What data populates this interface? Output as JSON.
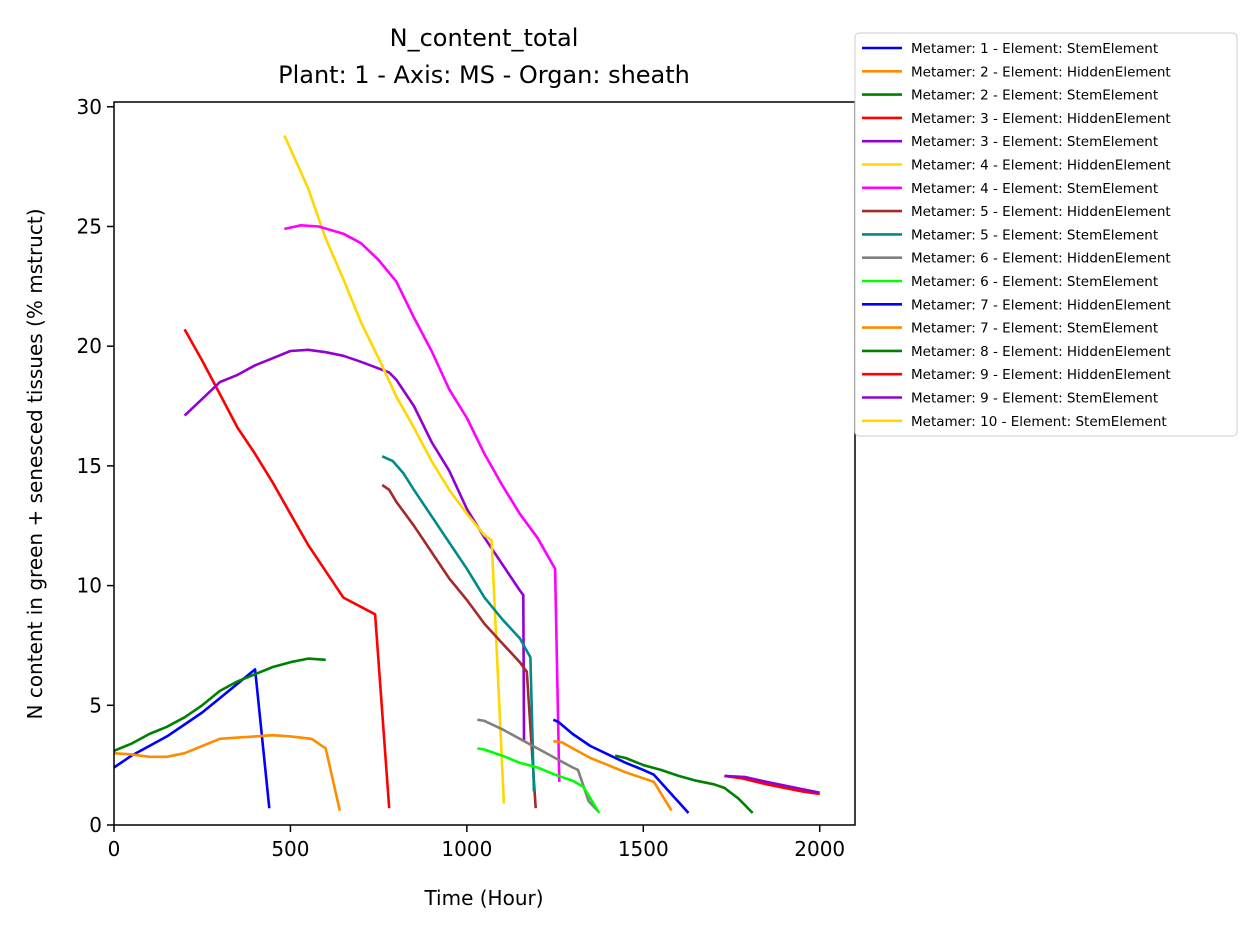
{
  "chart_data": {
    "type": "line",
    "title": "N_content_total",
    "subtitle": "Plant: 1 - Axis: MS - Organ: sheath",
    "xlabel": "Time (Hour)",
    "ylabel": "N content in green + senesced tissues (% mstruct)",
    "xlim": [
      0,
      2100
    ],
    "ylim": [
      0,
      30.2
    ],
    "xticks": [
      0,
      500,
      1000,
      1500,
      2000
    ],
    "yticks": [
      0,
      5,
      10,
      15,
      20,
      25,
      30
    ],
    "grid": false,
    "legend_position": "outside-top-right",
    "series": [
      {
        "name": "Metamer: 1 - Element: StemElement",
        "color": "#0000ff",
        "points": [
          [
            0,
            2.4
          ],
          [
            50,
            2.9
          ],
          [
            100,
            3.3
          ],
          [
            150,
            3.7
          ],
          [
            200,
            4.2
          ],
          [
            250,
            4.7
          ],
          [
            300,
            5.3
          ],
          [
            350,
            5.9
          ],
          [
            400,
            6.5
          ],
          [
            440,
            0.7
          ]
        ]
      },
      {
        "name": "Metamer: 2 - Element: HiddenElement",
        "color": "#ff8c00",
        "points": [
          [
            0,
            3.0
          ],
          [
            50,
            2.95
          ],
          [
            100,
            2.85
          ],
          [
            150,
            2.85
          ],
          [
            200,
            3.0
          ],
          [
            250,
            3.3
          ],
          [
            300,
            3.6
          ],
          [
            350,
            3.65
          ],
          [
            400,
            3.7
          ],
          [
            450,
            3.75
          ],
          [
            500,
            3.7
          ],
          [
            560,
            3.6
          ],
          [
            600,
            3.2
          ],
          [
            640,
            0.6
          ]
        ]
      },
      {
        "name": "Metamer: 2 - Element: StemElement",
        "color": "#008000",
        "points": [
          [
            0,
            3.1
          ],
          [
            50,
            3.4
          ],
          [
            100,
            3.8
          ],
          [
            150,
            4.1
          ],
          [
            200,
            4.5
          ],
          [
            250,
            5.0
          ],
          [
            300,
            5.6
          ],
          [
            350,
            6.0
          ],
          [
            400,
            6.3
          ],
          [
            450,
            6.6
          ],
          [
            500,
            6.8
          ],
          [
            550,
            6.95
          ],
          [
            600,
            6.9
          ]
        ]
      },
      {
        "name": "Metamer: 3 - Element: HiddenElement",
        "color": "#ff0000",
        "points": [
          [
            200,
            20.7
          ],
          [
            250,
            19.4
          ],
          [
            300,
            18.0
          ],
          [
            350,
            16.6
          ],
          [
            400,
            15.5
          ],
          [
            450,
            14.3
          ],
          [
            500,
            13.0
          ],
          [
            550,
            11.7
          ],
          [
            600,
            10.6
          ],
          [
            650,
            9.5
          ],
          [
            740,
            8.8
          ],
          [
            780,
            0.7
          ]
        ]
      },
      {
        "name": "Metamer: 3 - Element: StemElement",
        "color": "#9400d3",
        "points": [
          [
            200,
            17.1
          ],
          [
            250,
            17.8
          ],
          [
            300,
            18.5
          ],
          [
            350,
            18.8
          ],
          [
            400,
            19.2
          ],
          [
            450,
            19.5
          ],
          [
            500,
            19.8
          ],
          [
            550,
            19.85
          ],
          [
            600,
            19.75
          ],
          [
            650,
            19.6
          ],
          [
            700,
            19.35
          ],
          [
            780,
            18.9
          ],
          [
            800,
            18.6
          ],
          [
            850,
            17.5
          ],
          [
            900,
            16.0
          ],
          [
            950,
            14.8
          ],
          [
            1000,
            13.2
          ],
          [
            1050,
            12.0
          ],
          [
            1100,
            10.9
          ],
          [
            1150,
            9.8
          ],
          [
            1160,
            9.6
          ],
          [
            1162,
            3.5
          ]
        ]
      },
      {
        "name": "Metamer: 4 - Element: HiddenElement",
        "color": "#ffd700",
        "points": [
          [
            483,
            28.8
          ],
          [
            550,
            26.6
          ],
          [
            600,
            24.5
          ],
          [
            650,
            22.8
          ],
          [
            700,
            21.0
          ],
          [
            750,
            19.5
          ],
          [
            800,
            17.9
          ],
          [
            850,
            16.6
          ],
          [
            900,
            15.2
          ],
          [
            950,
            14.0
          ],
          [
            1000,
            13.0
          ],
          [
            1050,
            12.1
          ],
          [
            1070,
            11.9
          ],
          [
            1105,
            0.9
          ]
        ]
      },
      {
        "name": "Metamer: 4 - Element: StemElement",
        "color": "#ff00ff",
        "points": [
          [
            483,
            24.9
          ],
          [
            530,
            25.05
          ],
          [
            580,
            25.0
          ],
          [
            650,
            24.7
          ],
          [
            700,
            24.3
          ],
          [
            750,
            23.6
          ],
          [
            800,
            22.7
          ],
          [
            850,
            21.2
          ],
          [
            900,
            19.8
          ],
          [
            950,
            18.2
          ],
          [
            1000,
            17.0
          ],
          [
            1050,
            15.5
          ],
          [
            1100,
            14.2
          ],
          [
            1150,
            13.0
          ],
          [
            1200,
            12.0
          ],
          [
            1250,
            10.7
          ],
          [
            1262,
            1.8
          ]
        ]
      },
      {
        "name": "Metamer: 5 - Element: HiddenElement",
        "color": "#a52a2a",
        "points": [
          [
            760,
            14.2
          ],
          [
            780,
            14.0
          ],
          [
            800,
            13.5
          ],
          [
            850,
            12.5
          ],
          [
            900,
            11.4
          ],
          [
            950,
            10.3
          ],
          [
            1000,
            9.4
          ],
          [
            1050,
            8.4
          ],
          [
            1100,
            7.6
          ],
          [
            1150,
            6.8
          ],
          [
            1170,
            6.4
          ],
          [
            1195,
            0.7
          ]
        ]
      },
      {
        "name": "Metamer: 5 - Element: StemElement",
        "color": "#008b8b",
        "points": [
          [
            760,
            15.4
          ],
          [
            790,
            15.2
          ],
          [
            820,
            14.7
          ],
          [
            850,
            14.0
          ],
          [
            900,
            12.9
          ],
          [
            950,
            11.8
          ],
          [
            1000,
            10.7
          ],
          [
            1050,
            9.5
          ],
          [
            1100,
            8.6
          ],
          [
            1150,
            7.8
          ],
          [
            1180,
            7.0
          ],
          [
            1190,
            1.4
          ]
        ]
      },
      {
        "name": "Metamer: 6 - Element: HiddenElement",
        "color": "#808080",
        "points": [
          [
            1030,
            4.4
          ],
          [
            1050,
            4.35
          ],
          [
            1100,
            4.0
          ],
          [
            1150,
            3.6
          ],
          [
            1200,
            3.2
          ],
          [
            1250,
            2.8
          ],
          [
            1300,
            2.4
          ],
          [
            1315,
            2.3
          ],
          [
            1345,
            1.0
          ],
          [
            1370,
            0.6
          ]
        ]
      },
      {
        "name": "Metamer: 6 - Element: StemElement",
        "color": "#00ff00",
        "points": [
          [
            1030,
            3.2
          ],
          [
            1050,
            3.15
          ],
          [
            1100,
            2.9
          ],
          [
            1150,
            2.6
          ],
          [
            1200,
            2.4
          ],
          [
            1250,
            2.1
          ],
          [
            1300,
            1.85
          ],
          [
            1330,
            1.6
          ],
          [
            1375,
            0.5
          ]
        ]
      },
      {
        "name": "Metamer: 7 - Element: HiddenElement",
        "color": "#0000ff",
        "points": [
          [
            1245,
            4.4
          ],
          [
            1260,
            4.3
          ],
          [
            1300,
            3.8
          ],
          [
            1350,
            3.3
          ],
          [
            1400,
            2.95
          ],
          [
            1450,
            2.6
          ],
          [
            1500,
            2.3
          ],
          [
            1530,
            2.1
          ],
          [
            1628,
            0.5
          ]
        ]
      },
      {
        "name": "Metamer: 7 - Element: StemElement",
        "color": "#ff8c00",
        "points": [
          [
            1245,
            3.5
          ],
          [
            1270,
            3.45
          ],
          [
            1300,
            3.2
          ],
          [
            1350,
            2.8
          ],
          [
            1400,
            2.5
          ],
          [
            1450,
            2.2
          ],
          [
            1500,
            1.95
          ],
          [
            1530,
            1.8
          ],
          [
            1580,
            0.6
          ]
        ]
      },
      {
        "name": "Metamer: 8 - Element: HiddenElement",
        "color": "#008000",
        "points": [
          [
            1420,
            2.9
          ],
          [
            1450,
            2.8
          ],
          [
            1500,
            2.5
          ],
          [
            1550,
            2.3
          ],
          [
            1600,
            2.05
          ],
          [
            1650,
            1.85
          ],
          [
            1700,
            1.7
          ],
          [
            1730,
            1.55
          ],
          [
            1770,
            1.1
          ],
          [
            1810,
            0.5
          ]
        ]
      },
      {
        "name": "Metamer: 9 - Element: HiddenElement",
        "color": "#ff0000",
        "points": [
          [
            1730,
            2.05
          ],
          [
            1780,
            1.95
          ],
          [
            1850,
            1.7
          ],
          [
            1900,
            1.55
          ],
          [
            1950,
            1.4
          ],
          [
            2000,
            1.3
          ]
        ]
      },
      {
        "name": "Metamer: 9 - Element: StemElement",
        "color": "#9400d3",
        "points": [
          [
            1730,
            2.05
          ],
          [
            1790,
            2.0
          ],
          [
            1850,
            1.8
          ],
          [
            1900,
            1.65
          ],
          [
            1950,
            1.5
          ],
          [
            2000,
            1.35
          ]
        ]
      },
      {
        "name": "Metamer: 10 - Element: StemElement",
        "color": "#ffd700",
        "points": []
      }
    ]
  }
}
